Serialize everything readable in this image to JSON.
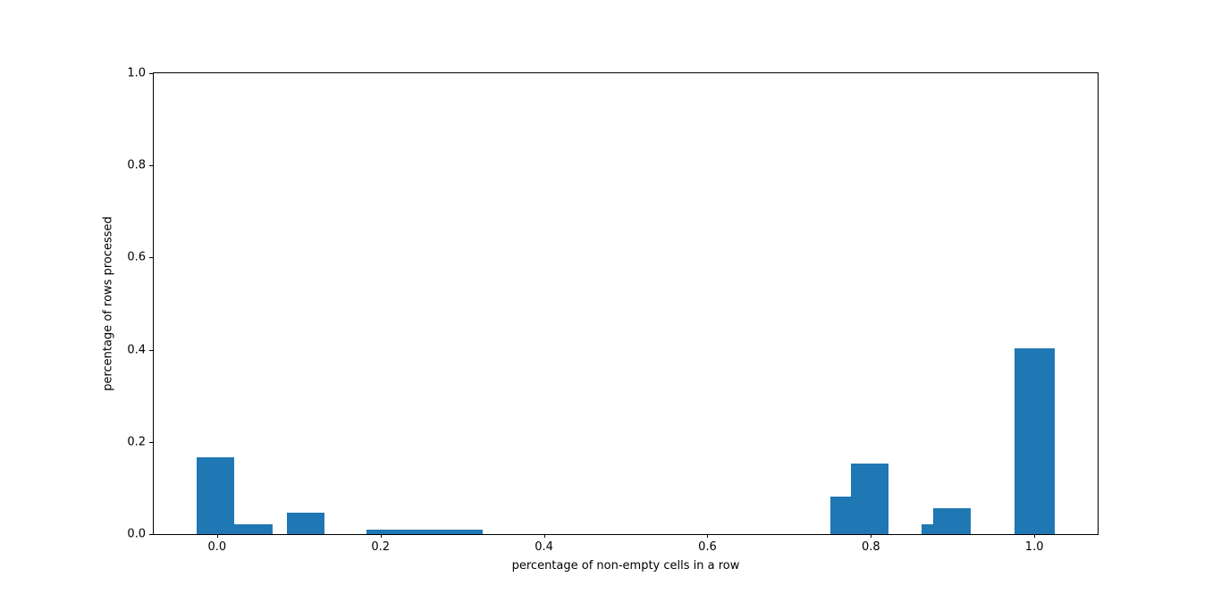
{
  "chart_data": {
    "type": "bar",
    "title": "",
    "xlabel": "percentage of non-empty cells in a row",
    "ylabel": "percentage of rows processed",
    "xlim": [
      -0.0775,
      1.0775
    ],
    "ylim": [
      0,
      1.0
    ],
    "x_ticks": [
      "0.0",
      "0.2",
      "0.4",
      "0.6",
      "0.8",
      "1.0"
    ],
    "x_tick_values": [
      0.0,
      0.2,
      0.4,
      0.6,
      0.8,
      1.0
    ],
    "y_ticks": [
      "0.0",
      "0.2",
      "0.4",
      "0.6",
      "0.8",
      "1.0"
    ],
    "y_tick_values": [
      0.0,
      0.2,
      0.4,
      0.6,
      0.8,
      1.0
    ],
    "grid": false,
    "legend": null,
    "bar_color": "#1f77b4",
    "bars": [
      {
        "x_left": -0.025,
        "x_right": 0.021,
        "height": 0.167
      },
      {
        "x_left": 0.021,
        "x_right": 0.068,
        "height": 0.021
      },
      {
        "x_left": 0.085,
        "x_right": 0.131,
        "height": 0.046
      },
      {
        "x_left": 0.183,
        "x_right": 0.325,
        "height": 0.01
      },
      {
        "x_left": 0.75,
        "x_right": 0.776,
        "height": 0.082
      },
      {
        "x_left": 0.776,
        "x_right": 0.822,
        "height": 0.154
      },
      {
        "x_left": 0.862,
        "x_right": 0.876,
        "height": 0.021
      },
      {
        "x_left": 0.876,
        "x_right": 0.922,
        "height": 0.057
      },
      {
        "x_left": 0.976,
        "x_right": 1.025,
        "height": 0.404
      }
    ]
  }
}
